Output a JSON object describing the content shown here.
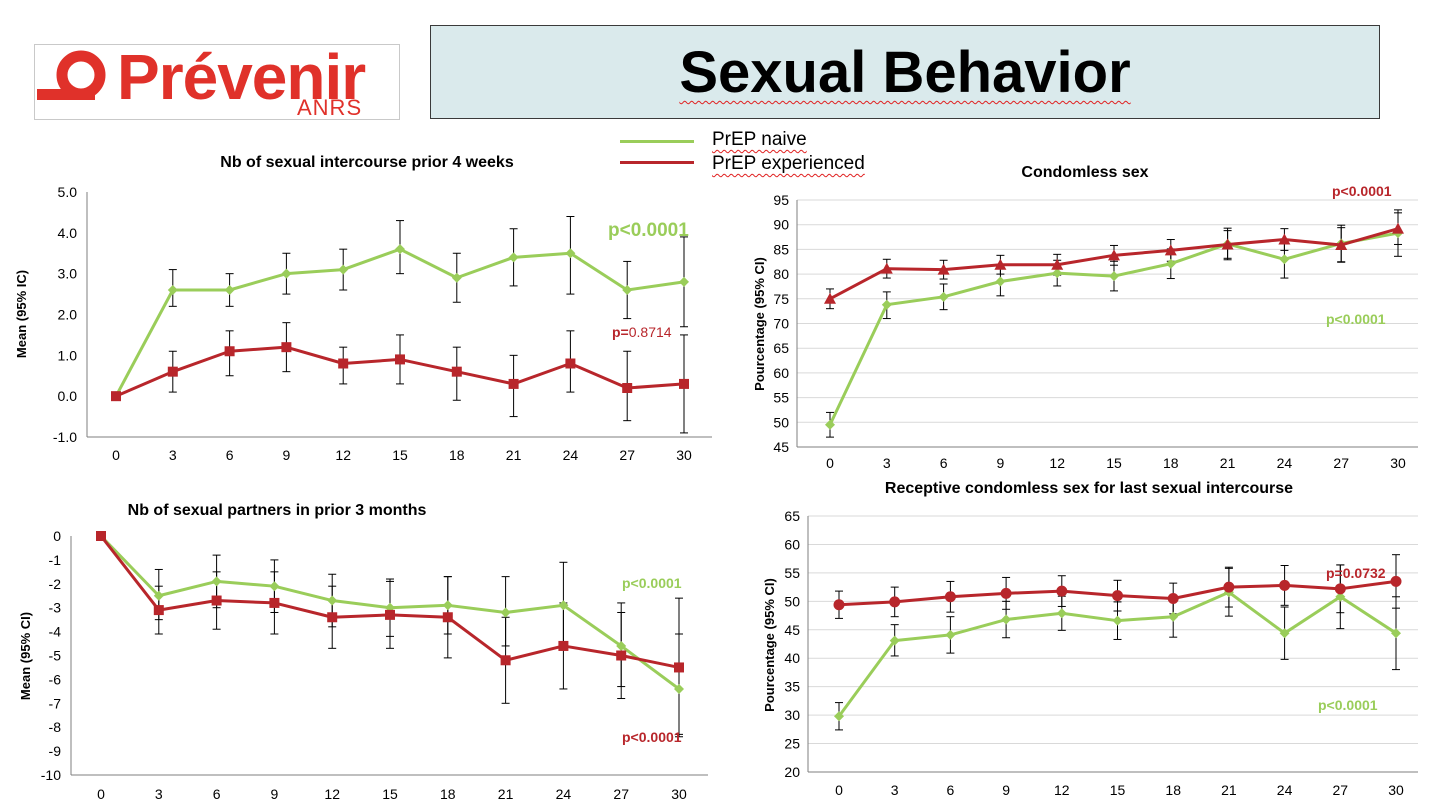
{
  "header": {
    "logo_text": "Prévenir",
    "logo_subtext": "ANRS",
    "title": "Sexual Behavior"
  },
  "legend": {
    "items": [
      {
        "label": "PrEP naive",
        "color": "#9acd5a"
      },
      {
        "label": "PrEP experienced",
        "color": "#b8262b"
      }
    ]
  },
  "colors": {
    "naive": "#9acd5a",
    "experienced": "#b8262b",
    "axis": "#7f7f7f",
    "grid": "#d9d9d9",
    "logo": "#e0312a"
  },
  "chart_data": [
    {
      "id": "intercourse",
      "type": "line",
      "title": "Nb of sexual intercourse prior 4 weeks",
      "ylabel": "Mean (95% IC)",
      "xlabel": "",
      "categories": [
        "0",
        "3",
        "6",
        "9",
        "12",
        "15",
        "18",
        "21",
        "24",
        "27",
        "30"
      ],
      "yticks": [
        "5.0",
        "4.0",
        "3.0",
        "2.0",
        "1.0",
        "0.0",
        "-1.0"
      ],
      "ylim": [
        -1,
        5
      ],
      "grid": false,
      "series": [
        {
          "name": "PrEP naive",
          "marker": "diamond",
          "values": [
            0,
            2.6,
            2.6,
            3.0,
            3.1,
            3.6,
            2.9,
            3.4,
            3.5,
            2.6,
            2.8
          ],
          "lower": [
            0,
            2.2,
            2.2,
            2.5,
            2.6,
            3.0,
            2.3,
            2.7,
            2.5,
            1.9,
            1.7
          ],
          "upper": [
            0,
            3.1,
            3.0,
            3.5,
            3.6,
            4.3,
            3.5,
            4.1,
            4.4,
            3.3,
            3.9
          ]
        },
        {
          "name": "PrEP experienced",
          "marker": "square",
          "values": [
            0,
            0.6,
            1.1,
            1.2,
            0.8,
            0.9,
            0.6,
            0.3,
            0.8,
            0.2,
            0.3
          ],
          "lower": [
            0,
            0.1,
            0.5,
            0.6,
            0.3,
            0.3,
            -0.1,
            -0.5,
            0.1,
            -0.6,
            -0.9
          ],
          "upper": [
            0,
            1.1,
            1.6,
            1.8,
            1.2,
            1.5,
            1.2,
            1.0,
            1.6,
            1.1,
            1.5
          ]
        }
      ],
      "annotations": [
        {
          "text": "p<0.0001",
          "series": "PrEP naive"
        },
        {
          "text_prefix": "p=",
          "text": "0.8714",
          "series": "PrEP experienced"
        }
      ]
    },
    {
      "id": "condomless",
      "type": "line",
      "title": "Condomless sex",
      "ylabel": "Pourcentage (95% CI)",
      "xlabel": "",
      "categories": [
        "0",
        "3",
        "6",
        "9",
        "12",
        "15",
        "18",
        "21",
        "24",
        "27",
        "30"
      ],
      "yticks": [
        "95",
        "90",
        "85",
        "80",
        "75",
        "70",
        "65",
        "60",
        "55",
        "50",
        "45"
      ],
      "ylim": [
        45,
        95
      ],
      "grid": true,
      "series": [
        {
          "name": "PrEP naive",
          "marker": "diamond",
          "values": [
            49.5,
            73.8,
            75.4,
            78.5,
            80.2,
            79.6,
            82.1,
            86.1,
            83.0,
            86.2,
            88.3
          ],
          "lower": [
            47.0,
            71.0,
            72.8,
            75.6,
            77.6,
            76.6,
            79.1,
            82.9,
            79.2,
            82.5,
            83.6
          ],
          "upper": [
            52.0,
            76.4,
            78.0,
            81.4,
            82.8,
            82.6,
            85.1,
            89.3,
            86.8,
            89.9,
            93.0
          ]
        },
        {
          "name": "PrEP experienced",
          "marker": "triangle",
          "values": [
            75.0,
            81.1,
            80.9,
            81.9,
            81.9,
            83.8,
            84.8,
            86.0,
            87.0,
            85.9,
            89.2
          ],
          "lower": [
            73.0,
            79.2,
            79.0,
            80.0,
            79.8,
            81.8,
            82.6,
            83.2,
            84.8,
            82.4,
            86.0
          ],
          "upper": [
            77.0,
            83.0,
            82.8,
            83.8,
            84.0,
            85.8,
            87.0,
            88.8,
            89.2,
            89.4,
            92.4
          ]
        }
      ],
      "annotations": [
        {
          "text": "p<0.0001",
          "series": "PrEP experienced"
        },
        {
          "text": "p<0.0001",
          "series": "PrEP naive"
        }
      ]
    },
    {
      "id": "partners",
      "type": "line",
      "title": "Nb of sexual partners in prior 3 months",
      "ylabel": "Mean (95% CI)",
      "xlabel": "",
      "categories": [
        "0",
        "3",
        "6",
        "9",
        "12",
        "15",
        "18",
        "21",
        "24",
        "27",
        "30"
      ],
      "yticks": [
        "0",
        "-1",
        "-2",
        "-3",
        "-4",
        "-5",
        "-6",
        "-7",
        "-8",
        "-9",
        "-10"
      ],
      "ylim": [
        -10,
        0
      ],
      "grid": false,
      "series": [
        {
          "name": "PrEP naive",
          "marker": "diamond",
          "values": [
            0,
            -2.5,
            -1.9,
            -2.1,
            -2.7,
            -3.0,
            -2.9,
            -3.2,
            -2.9,
            -4.6,
            -6.4
          ],
          "lower": [
            0,
            -3.5,
            -3.0,
            -3.2,
            -3.8,
            -4.2,
            -4.1,
            -4.6,
            -4.6,
            -6.3,
            -8.4
          ],
          "upper": [
            0,
            -1.4,
            -0.8,
            -1.0,
            -1.6,
            -1.8,
            -1.7,
            -1.7,
            -1.1,
            -2.8,
            -4.1
          ]
        },
        {
          "name": "PrEP experienced",
          "marker": "square",
          "values": [
            0,
            -3.1,
            -2.7,
            -2.8,
            -3.4,
            -3.3,
            -3.4,
            -5.2,
            -4.6,
            -5.0,
            -5.5
          ],
          "lower": [
            0,
            -4.1,
            -3.9,
            -4.1,
            -4.7,
            -4.7,
            -5.1,
            -7.0,
            -6.4,
            -6.8,
            -8.3
          ],
          "upper": [
            0,
            -2.1,
            -1.5,
            -1.5,
            -2.1,
            -1.9,
            -1.7,
            -3.4,
            -2.8,
            -3.2,
            -2.6
          ]
        }
      ],
      "annotations": [
        {
          "text": "p<0.0001",
          "series": "PrEP naive"
        },
        {
          "text": "p<0.0001",
          "series": "PrEP experienced"
        }
      ]
    },
    {
      "id": "receptive",
      "type": "line",
      "title": "Receptive condomless sex for last sexual intercourse",
      "ylabel": "Pourcentage (95% CI)",
      "xlabel": "",
      "categories": [
        "0",
        "3",
        "6",
        "9",
        "12",
        "15",
        "18",
        "21",
        "24",
        "27",
        "30"
      ],
      "yticks": [
        "65",
        "60",
        "55",
        "50",
        "45",
        "40",
        "35",
        "30",
        "25",
        "20"
      ],
      "ylim": [
        20,
        65
      ],
      "grid": true,
      "series": [
        {
          "name": "PrEP naive",
          "marker": "diamond",
          "values": [
            29.8,
            43.1,
            44.1,
            46.8,
            47.9,
            46.6,
            47.3,
            51.6,
            44.4,
            50.8,
            44.4
          ],
          "lower": [
            27.4,
            40.4,
            40.9,
            43.6,
            44.9,
            43.3,
            43.7,
            47.4,
            39.8,
            45.2,
            38.0
          ],
          "upper": [
            32.2,
            45.9,
            47.3,
            50.0,
            50.9,
            49.9,
            50.9,
            55.8,
            49.0,
            56.4,
            50.8
          ]
        },
        {
          "name": "PrEP experienced",
          "marker": "circle",
          "values": [
            49.4,
            49.9,
            50.8,
            51.4,
            51.8,
            51.0,
            50.5,
            52.5,
            52.8,
            52.2,
            53.5
          ],
          "lower": [
            47.0,
            47.3,
            48.1,
            48.6,
            49.1,
            48.3,
            47.8,
            49.0,
            49.3,
            48.0,
            48.8
          ],
          "upper": [
            51.8,
            52.5,
            53.5,
            54.2,
            54.5,
            53.7,
            53.2,
            56.0,
            56.3,
            56.4,
            58.2
          ]
        }
      ],
      "annotations": [
        {
          "text": "p=0.0732",
          "series": "PrEP experienced"
        },
        {
          "text": "p<0.0001",
          "series": "PrEP naive"
        }
      ]
    }
  ]
}
